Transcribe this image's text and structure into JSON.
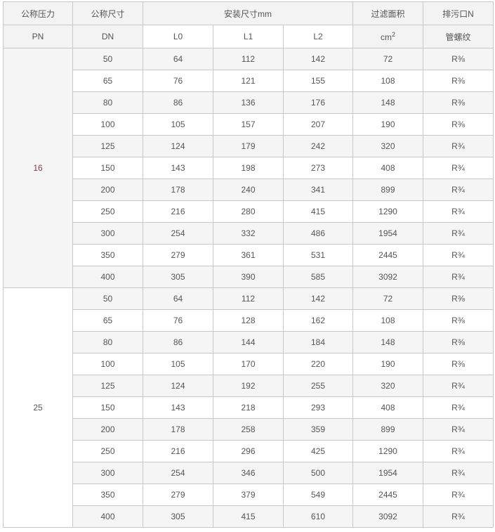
{
  "header": {
    "pn": [
      "公称压力",
      "PN"
    ],
    "dn": [
      "公称尺寸",
      "DN"
    ],
    "install": "安装尺寸mm",
    "l0": "L0",
    "l1": "L1",
    "l2": "L2",
    "area": "过滤面积",
    "area_unit": "cm",
    "area_exp": "2",
    "drain": "排污口N",
    "drain_sub": "管螺纹"
  },
  "groups": [
    {
      "pn": "16",
      "rows": [
        [
          "50",
          "64",
          "112",
          "142",
          "72",
          "R⅜"
        ],
        [
          "65",
          "76",
          "121",
          "155",
          "108",
          "R⅜"
        ],
        [
          "80",
          "86",
          "136",
          "176",
          "148",
          "R⅜"
        ],
        [
          "100",
          "105",
          "157",
          "207",
          "190",
          "R⅜"
        ],
        [
          "125",
          "124",
          "179",
          "242",
          "320",
          "R¾"
        ],
        [
          "150",
          "143",
          "198",
          "273",
          "408",
          "R¾"
        ],
        [
          "200",
          "178",
          "240",
          "341",
          "899",
          "R¾"
        ],
        [
          "250",
          "216",
          "280",
          "415",
          "1290",
          "R¾"
        ],
        [
          "300",
          "254",
          "332",
          "486",
          "1954",
          "R¾"
        ],
        [
          "350",
          "279",
          "361",
          "531",
          "2445",
          "R¾"
        ],
        [
          "400",
          "305",
          "390",
          "585",
          "3092",
          "R¾"
        ]
      ]
    },
    {
      "pn": "25",
      "rows": [
        [
          "50",
          "64",
          "112",
          "142",
          "72",
          "R⅜"
        ],
        [
          "65",
          "76",
          "128",
          "162",
          "108",
          "R⅜"
        ],
        [
          "80",
          "86",
          "144",
          "184",
          "148",
          "R⅜"
        ],
        [
          "100",
          "105",
          "170",
          "220",
          "190",
          "R⅜"
        ],
        [
          "125",
          "124",
          "192",
          "255",
          "320",
          "R¾"
        ],
        [
          "150",
          "143",
          "218",
          "293",
          "408",
          "R¾"
        ],
        [
          "200",
          "178",
          "258",
          "359",
          "899",
          "R¾"
        ],
        [
          "250",
          "216",
          "296",
          "425",
          "1290",
          "R¾"
        ],
        [
          "300",
          "254",
          "346",
          "500",
          "1954",
          "R¾"
        ],
        [
          "350",
          "279",
          "379",
          "549",
          "2445",
          "R¾"
        ],
        [
          "400",
          "305",
          "415",
          "610",
          "3092",
          "R¾"
        ]
      ]
    }
  ]
}
